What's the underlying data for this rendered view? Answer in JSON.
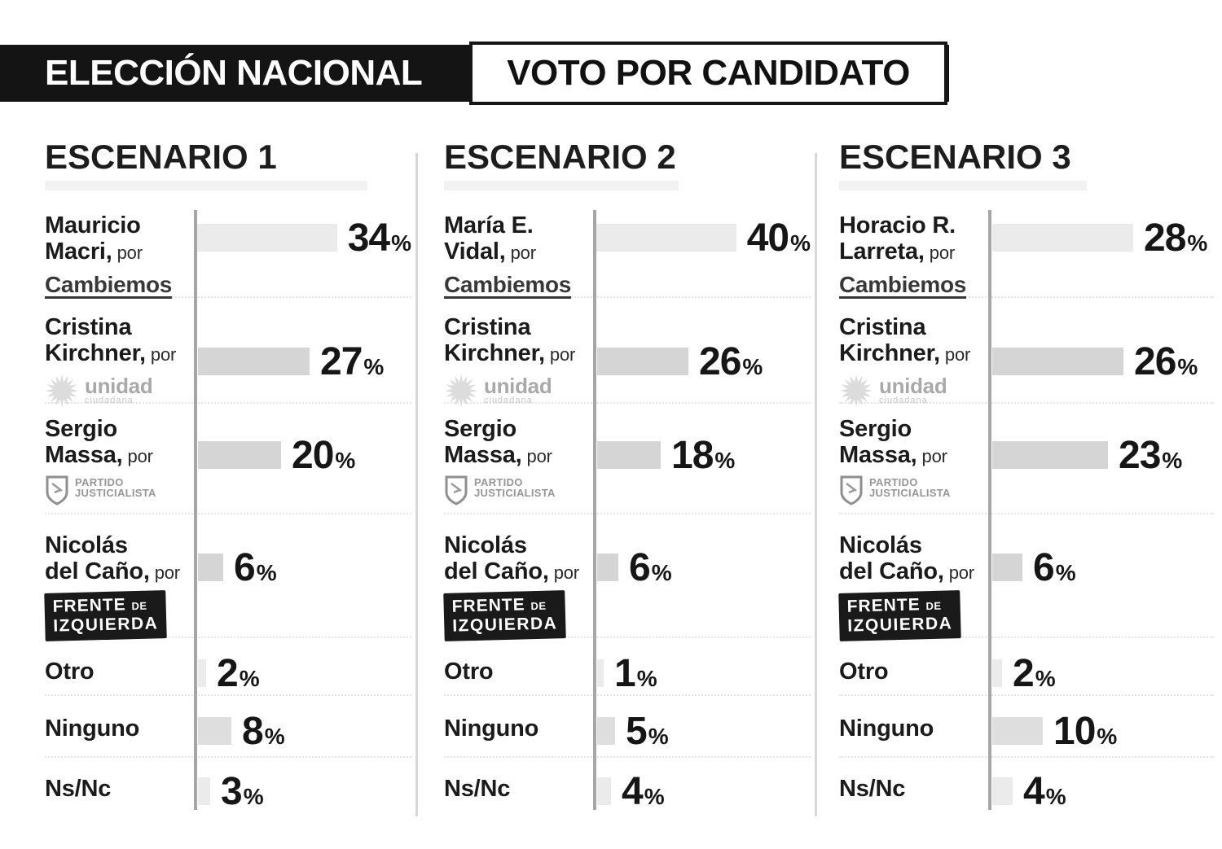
{
  "header": {
    "left": "ELECCIÓN NACIONAL",
    "right": "VOTO POR CANDIDATO"
  },
  "colors": {
    "light": "#ebebeb",
    "mid": "#d5d5d5",
    "soft": "#dedede",
    "axis": "#a6a6a6",
    "divider": "#d8d8d8",
    "header_bg": "#141414",
    "ink": "#1b1b1b",
    "logo_gray": "#a0a0a0",
    "fit_badge_bg": "#1a1a1a"
  },
  "parties": {
    "cambiemos": {
      "label": "Cambiemos"
    },
    "unidad": {
      "line1": "unidad",
      "line2": "ciudadana"
    },
    "pj": {
      "line1": "PARTIDO",
      "line2": "JUSTICIALISTA"
    },
    "fit": {
      "line1": "FRENTE",
      "line1b": "DE",
      "line2": "IZQUIERDA"
    }
  },
  "chart_data": [
    {
      "type": "bar",
      "orientation": "horizontal",
      "title": "ESCENARIO 1",
      "unit": "%",
      "categories": [
        "Mauricio Macri (Cambiemos)",
        "Cristina Kirchner (Unidad Ciudadana)",
        "Sergio Massa (Partido Justicialista)",
        "Nicolás del Caño (Frente de Izquierda)",
        "Otro",
        "Ninguno",
        "Ns/Nc"
      ],
      "values": [
        34,
        27,
        20,
        6,
        2,
        8,
        3
      ],
      "xlim": [
        0,
        34
      ],
      "grid": false,
      "legend": "none"
    },
    {
      "type": "bar",
      "orientation": "horizontal",
      "title": "ESCENARIO 2",
      "unit": "%",
      "categories": [
        "María E. Vidal (Cambiemos)",
        "Cristina Kirchner (Unidad Ciudadana)",
        "Sergio Massa (Partido Justicialista)",
        "Nicolás del Caño (Frente de Izquierda)",
        "Otro",
        "Ninguno",
        "Ns/Nc"
      ],
      "values": [
        40,
        26,
        18,
        6,
        1,
        5,
        4
      ],
      "xlim": [
        0,
        40
      ],
      "grid": false,
      "legend": "none"
    },
    {
      "type": "bar",
      "orientation": "horizontal",
      "title": "ESCENARIO 3",
      "unit": "%",
      "categories": [
        "Horacio R. Larreta (Cambiemos)",
        "Cristina Kirchner (Unidad Ciudadana)",
        "Sergio Massa (Partido Justicialista)",
        "Nicolás del Caño (Frente de Izquierda)",
        "Otro",
        "Ninguno",
        "Ns/Nc"
      ],
      "values": [
        28,
        26,
        23,
        6,
        2,
        10,
        4
      ],
      "xlim": [
        0,
        28
      ],
      "grid": false,
      "legend": "none"
    }
  ],
  "scenarios": [
    {
      "title": "ESCENARIO 1",
      "rows": [
        {
          "name_line1": "Mauricio",
          "name_line2": "Macri,",
          "por": "por",
          "party": "cambiemos",
          "shade": "light"
        },
        {
          "name_line1": "Cristina",
          "name_line2": "Kirchner,",
          "por": "por",
          "party": "unidad",
          "shade": "mid"
        },
        {
          "name_line1": "Sergio",
          "name_line2": "Massa,",
          "por": "por",
          "party": "pj",
          "shade": "mid"
        },
        {
          "name_line1": "Nicolás",
          "name_line2": "del Caño,",
          "por": "por",
          "party": "fit",
          "shade": "mid"
        },
        {
          "name_line1": "Otro",
          "party": null,
          "shade": "light"
        },
        {
          "name_line1": "Ninguno",
          "party": null,
          "shade": "soft"
        },
        {
          "name_line1": "Ns/Nc",
          "party": null,
          "shade": "light"
        }
      ]
    },
    {
      "title": "ESCENARIO 2",
      "rows": [
        {
          "name_line1": "María E.",
          "name_line2": "Vidal,",
          "por": "por",
          "party": "cambiemos",
          "shade": "light"
        },
        {
          "name_line1": "Cristina",
          "name_line2": "Kirchner,",
          "por": "por",
          "party": "unidad",
          "shade": "mid"
        },
        {
          "name_line1": "Sergio",
          "name_line2": "Massa,",
          "por": "por",
          "party": "pj",
          "shade": "mid"
        },
        {
          "name_line1": "Nicolás",
          "name_line2": "del Caño,",
          "por": "por",
          "party": "fit",
          "shade": "mid"
        },
        {
          "name_line1": "Otro",
          "party": null,
          "shade": "light"
        },
        {
          "name_line1": "Ninguno",
          "party": null,
          "shade": "soft"
        },
        {
          "name_line1": "Ns/Nc",
          "party": null,
          "shade": "light"
        }
      ]
    },
    {
      "title": "ESCENARIO 3",
      "rows": [
        {
          "name_line1": "Horacio R.",
          "name_line2": "Larreta,",
          "por": "por",
          "party": "cambiemos",
          "shade": "light"
        },
        {
          "name_line1": "Cristina",
          "name_line2": "Kirchner,",
          "por": "por",
          "party": "unidad",
          "shade": "mid"
        },
        {
          "name_line1": "Sergio",
          "name_line2": "Massa,",
          "por": "por",
          "party": "pj",
          "shade": "mid"
        },
        {
          "name_line1": "Nicolás",
          "name_line2": "del Caño,",
          "por": "por",
          "party": "fit",
          "shade": "mid"
        },
        {
          "name_line1": "Otro",
          "party": null,
          "shade": "light"
        },
        {
          "name_line1": "Ninguno",
          "party": null,
          "shade": "soft"
        },
        {
          "name_line1": "Ns/Nc",
          "party": null,
          "shade": "light"
        }
      ]
    }
  ]
}
